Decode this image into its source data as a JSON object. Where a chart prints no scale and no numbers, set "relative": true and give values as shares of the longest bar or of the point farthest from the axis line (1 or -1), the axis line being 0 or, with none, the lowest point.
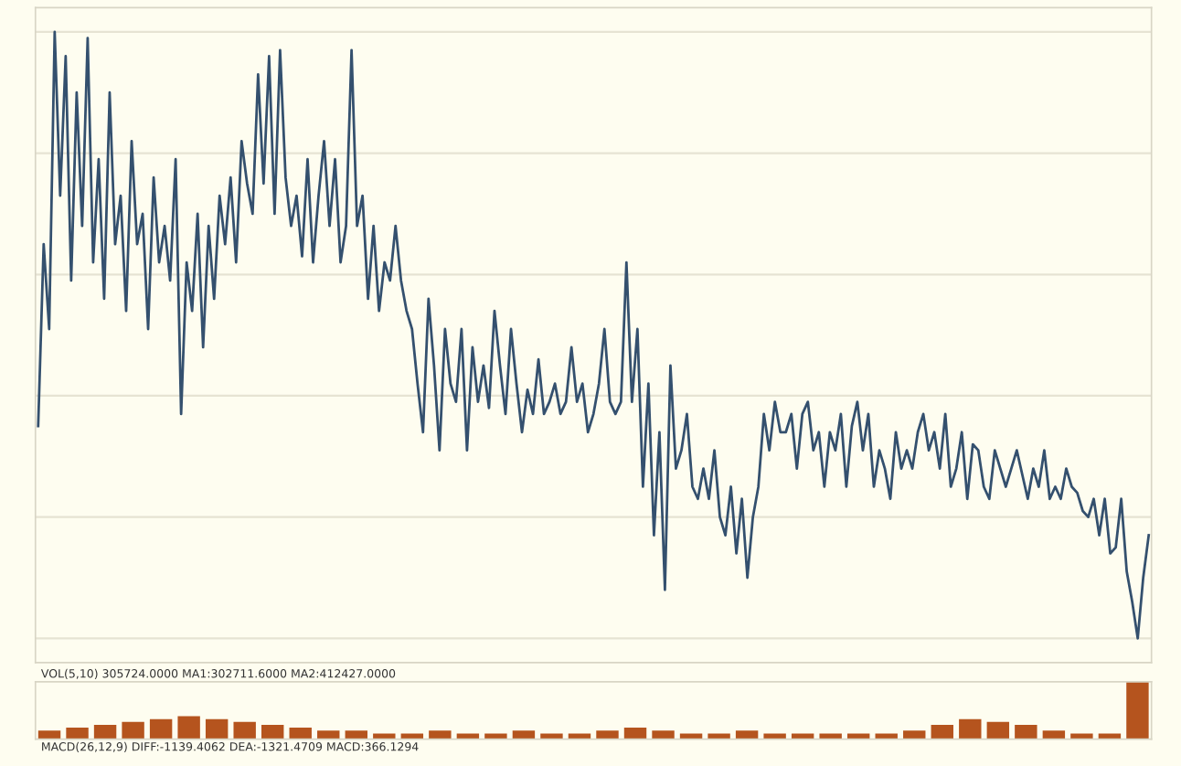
{
  "chart_data": [
    {
      "type": "line",
      "relative": true,
      "grid": "y",
      "marker": "none",
      "line_style": "solid",
      "categories": [
        null,
        null,
        null,
        null,
        null,
        null,
        null,
        null,
        null,
        null,
        null,
        null,
        null,
        null,
        null,
        null,
        null,
        null,
        null,
        null,
        null,
        null,
        null,
        null,
        null,
        null,
        null,
        null,
        null,
        null,
        null,
        null,
        null,
        null,
        null,
        null,
        null,
        null,
        null,
        null,
        null,
        null,
        null,
        null,
        null,
        null,
        null,
        null,
        null,
        null,
        null,
        null,
        null,
        null,
        null,
        null,
        null,
        null,
        null,
        null,
        null,
        null,
        null,
        null,
        null,
        null,
        null,
        null,
        null,
        null,
        null,
        null,
        null,
        null,
        null,
        null,
        null,
        null,
        null,
        null,
        null,
        null,
        null,
        null,
        null,
        null,
        null,
        null,
        null,
        null,
        null,
        null,
        null,
        null,
        null,
        null,
        null,
        null,
        null,
        null,
        null,
        null,
        null,
        null,
        null,
        null,
        null,
        null,
        null,
        null,
        null,
        null,
        null,
        null,
        null,
        null,
        null,
        null,
        null,
        null,
        null,
        null,
        null,
        null,
        null,
        null,
        null,
        null,
        null,
        null,
        null,
        null,
        null,
        null,
        null,
        null,
        null,
        null,
        null,
        null,
        null,
        null,
        null,
        null,
        null,
        null,
        null,
        null,
        null,
        null,
        null,
        null,
        null,
        null,
        null,
        null,
        null,
        null,
        null,
        null,
        null,
        null,
        null,
        null,
        null,
        null,
        null,
        null,
        null,
        null,
        null,
        null,
        null,
        null,
        null,
        null,
        null,
        null,
        null,
        null,
        null,
        null,
        null,
        null,
        null,
        null,
        null,
        null,
        null,
        null,
        null,
        null,
        null,
        null,
        null,
        null,
        null,
        null,
        null,
        null,
        null,
        null,
        null
      ],
      "series": [
        {
          "color": "#34506e",
          "values": [
            0.35,
            0.65,
            0.51,
            1.0,
            0.73,
            0.96,
            0.59,
            0.9,
            0.68,
            0.99,
            0.62,
            0.79,
            0.56,
            0.9,
            0.65,
            0.73,
            0.54,
            0.82,
            0.65,
            0.7,
            0.51,
            0.76,
            0.62,
            0.68,
            0.59,
            0.79,
            0.37,
            0.62,
            0.54,
            0.7,
            0.48,
            0.68,
            0.56,
            0.73,
            0.65,
            0.76,
            0.62,
            0.82,
            0.75,
            0.7,
            0.93,
            0.75,
            0.96,
            0.7,
            0.97,
            0.76,
            0.68,
            0.73,
            0.63,
            0.79,
            0.62,
            0.73,
            0.82,
            0.68,
            0.79,
            0.62,
            0.68,
            0.97,
            0.68,
            0.73,
            0.56,
            0.68,
            0.54,
            0.62,
            0.59,
            0.68,
            0.59,
            0.54,
            0.51,
            0.42,
            0.34,
            0.56,
            0.45,
            0.31,
            0.51,
            0.42,
            0.39,
            0.51,
            0.31,
            0.48,
            0.39,
            0.45,
            0.38,
            0.54,
            0.45,
            0.37,
            0.51,
            0.42,
            0.34,
            0.41,
            0.37,
            0.46,
            0.37,
            0.39,
            0.42,
            0.37,
            0.39,
            0.48,
            0.39,
            0.42,
            0.34,
            0.37,
            0.42,
            0.51,
            0.39,
            0.37,
            0.39,
            0.62,
            0.39,
            0.51,
            0.25,
            0.42,
            0.17,
            0.34,
            0.08,
            0.45,
            0.28,
            0.31,
            0.37,
            0.25,
            0.23,
            0.28,
            0.23,
            0.31,
            0.2,
            0.17,
            0.25,
            0.14,
            0.23,
            0.1,
            0.2,
            0.25,
            0.37,
            0.31,
            0.39,
            0.34,
            0.34,
            0.37,
            0.28,
            0.37,
            0.39,
            0.31,
            0.34,
            0.25,
            0.34,
            0.31,
            0.37,
            0.25,
            0.35,
            0.39,
            0.31,
            0.37,
            0.25,
            0.31,
            0.28,
            0.23,
            0.34,
            0.28,
            0.31,
            0.28,
            0.34,
            0.37,
            0.31,
            0.34,
            0.28,
            0.37,
            0.25,
            0.28,
            0.34,
            0.23,
            0.32,
            0.31,
            0.25,
            0.23,
            0.31,
            0.28,
            0.25,
            0.28,
            0.31,
            0.27,
            0.23,
            0.28,
            0.25,
            0.31,
            0.23,
            0.25,
            0.23,
            0.28,
            0.25,
            0.24,
            0.21,
            0.2,
            0.23,
            0.17,
            0.23,
            0.14,
            0.15,
            0.23,
            0.11,
            0.06,
            0.0,
            0.1,
            0.17
          ]
        }
      ]
    },
    {
      "type": "bar",
      "relative": true,
      "annotations": [
        "VOL(5,10) 305724.0000 MA1:302711.6000 MA2:412427.0000",
        "MACD(26,12,9) DIFF:-1139.4062 DEA:-1321.4709 MACD:366.1294"
      ],
      "categories": [
        null,
        null,
        null,
        null,
        null,
        null,
        null,
        null,
        null,
        null,
        null,
        null,
        null,
        null,
        null,
        null,
        null,
        null,
        null,
        null,
        null,
        null,
        null,
        null,
        null,
        null,
        null,
        null,
        null,
        null,
        null,
        null,
        null,
        null,
        null,
        null,
        null,
        null,
        null,
        null
      ],
      "series": [
        {
          "color": "#b5541e",
          "values": [
            0.15,
            0.2,
            0.25,
            0.3,
            0.35,
            0.4,
            0.35,
            0.3,
            0.25,
            0.2,
            0.15,
            0.15,
            0.1,
            0.1,
            0.15,
            0.1,
            0.1,
            0.15,
            0.1,
            0.1,
            0.15,
            0.2,
            0.15,
            0.1,
            0.1,
            0.15,
            0.1,
            0.1,
            0.1,
            0.1,
            0.1,
            0.15,
            0.25,
            0.35,
            0.3,
            0.25,
            0.15,
            0.1,
            0.1,
            1.0
          ]
        }
      ]
    }
  ]
}
